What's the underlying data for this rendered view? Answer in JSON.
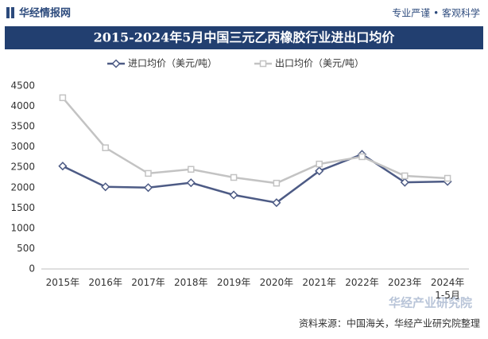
{
  "header": {
    "brand": "华经情报网",
    "slogan": "专业严谨 • 客观科学"
  },
  "chart_data": {
    "type": "line",
    "title": "2015-2024年5月中国三元乙丙橡胶行业进出口均价",
    "categories": [
      "2015年",
      "2016年",
      "2017年",
      "2018年",
      "2019年",
      "2020年",
      "2021年",
      "2022年",
      "2023年",
      "2024年\n1-5月"
    ],
    "series": [
      {
        "name": "进口均价（美元/吨）",
        "color": "#4d5b85",
        "marker": "diamond",
        "values": [
          2530,
          2020,
          2000,
          2120,
          1820,
          1630,
          2410,
          2820,
          2130,
          2150
        ]
      },
      {
        "name": "出口均价（美元/吨）",
        "color": "#c3c3c3",
        "marker": "square",
        "values": [
          4210,
          2980,
          2350,
          2450,
          2250,
          2110,
          2580,
          2760,
          2290,
          2230
        ]
      }
    ],
    "ylim": [
      0,
      4500
    ],
    "yticks": [
      0,
      500,
      1000,
      1500,
      2000,
      2500,
      3000,
      3500,
      4000,
      4500
    ],
    "grid": false
  },
  "footer": {
    "source": "资料来源：中国海关，华经产业研究院整理",
    "logo": "华经产业研究院"
  }
}
